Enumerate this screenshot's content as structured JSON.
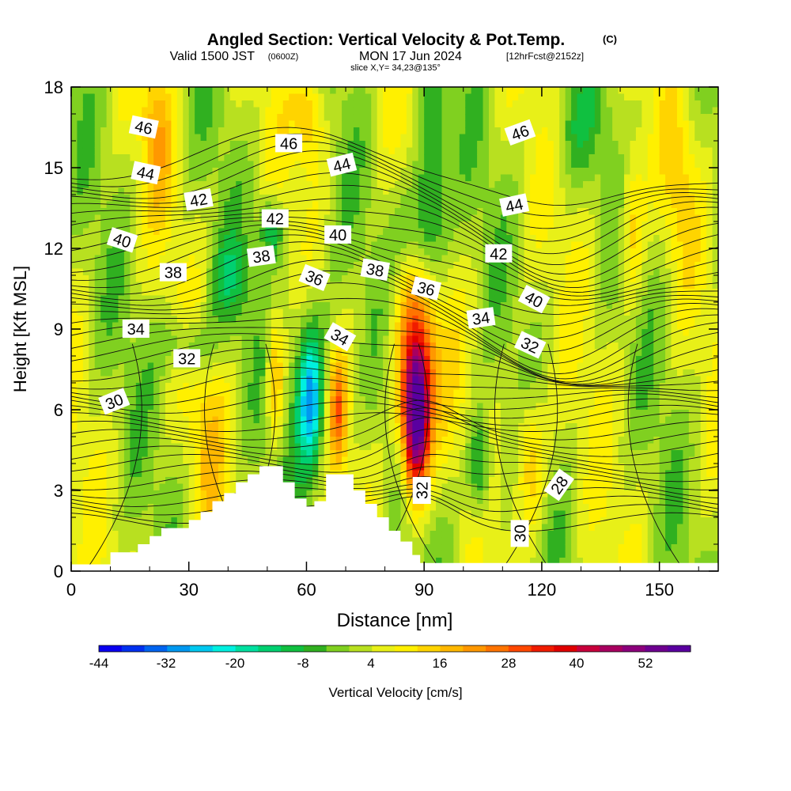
{
  "chart_data": {
    "type": "heatmap",
    "title": "Angled Section: Vertical Velocity & Pot.Temp.",
    "title_suffix": "(C)",
    "subtitle_prefix": "Valid 1500 JST",
    "subtitle_utc": "(0600Z)",
    "subtitle_date": "MON 17 Jun 2024",
    "subtitle_run": "[12hrFcst@2152z]",
    "slice_label": "slice X,Y= 34,23@135°",
    "xlabel": "Distance [nm]",
    "ylabel": "Height [Kft MSL]",
    "xlim": [
      0,
      165
    ],
    "ylim": [
      0,
      18
    ],
    "xticks": [
      0,
      30,
      60,
      90,
      120,
      150
    ],
    "yticks": [
      0,
      3,
      6,
      9,
      12,
      15,
      18
    ],
    "colorbar": {
      "label": "Vertical Velocity [cm/s]",
      "tick_labels": [
        "-44",
        "-32",
        "-20",
        "-8",
        "4",
        "16",
        "28",
        "40",
        "52"
      ],
      "colors": [
        "#0a00f0",
        "#0030f0",
        "#0064f0",
        "#0098f0",
        "#00c8f0",
        "#00f0e0",
        "#00e0a0",
        "#00d070",
        "#10c040",
        "#30b020",
        "#80d020",
        "#b8e020",
        "#e8f018",
        "#fff000",
        "#ffd400",
        "#ffb800",
        "#ff9800",
        "#ff7400",
        "#ff4800",
        "#f01c00",
        "#e00000",
        "#c8003c",
        "#a80060",
        "#8c007c",
        "#6e0090",
        "#5a00a0"
      ]
    },
    "terrain_profile": [
      [
        0,
        0.25
      ],
      [
        10,
        0.7
      ],
      [
        17,
        1.0
      ],
      [
        20,
        1.3
      ],
      [
        23,
        1.6
      ],
      [
        30,
        1.9
      ],
      [
        33,
        2.2
      ],
      [
        36,
        2.6
      ],
      [
        39,
        2.9
      ],
      [
        42,
        3.3
      ],
      [
        45,
        3.6
      ],
      [
        48,
        3.9
      ],
      [
        52,
        3.9
      ],
      [
        54,
        3.3
      ],
      [
        57,
        2.7
      ],
      [
        60,
        2.4
      ],
      [
        62,
        2.6
      ],
      [
        65,
        3.6
      ],
      [
        70,
        3.6
      ],
      [
        72,
        3.0
      ],
      [
        75,
        2.5
      ],
      [
        78,
        2.0
      ],
      [
        81,
        1.5
      ],
      [
        84,
        1.1
      ],
      [
        87,
        0.6
      ],
      [
        89,
        0.3
      ],
      [
        165,
        0.3
      ]
    ],
    "velocity_features": [
      {
        "x": 88,
        "z": 5.5,
        "peak": 56,
        "sx": 3.2,
        "sz": 2.6,
        "tilt": 0.06
      },
      {
        "x": 88,
        "z": 8.0,
        "peak": 24,
        "sx": 6.0,
        "sz": 3.5,
        "tilt": -0.1
      },
      {
        "x": 61,
        "z": 6.3,
        "peak": -26,
        "sx": 3.0,
        "sz": 2.4,
        "tilt": 0
      },
      {
        "x": 61,
        "z": 7.5,
        "peak": -10,
        "sx": 6.0,
        "sz": 4.0,
        "tilt": 0
      },
      {
        "x": 52,
        "z": 7.3,
        "peak": 18,
        "sx": 2.2,
        "sz": 2.4,
        "tilt": 0
      },
      {
        "x": 68,
        "z": 6.0,
        "peak": 20,
        "sx": 2.2,
        "sz": 2.0,
        "tilt": 0
      },
      {
        "x": 104,
        "z": 3.8,
        "peak": -18,
        "sx": 3.0,
        "sz": 2.0,
        "tilt": 0
      },
      {
        "x": 117,
        "z": 4.2,
        "peak": 16,
        "sx": 4.0,
        "sz": 2.6,
        "tilt": 0
      },
      {
        "x": 35,
        "z": 4.5,
        "peak": 8,
        "sx": 5.0,
        "sz": 3.5,
        "tilt": 0
      },
      {
        "x": 22,
        "z": 16.5,
        "peak": 12,
        "sx": 4.0,
        "sz": 3.0,
        "tilt": 0
      },
      {
        "x": 61,
        "z": 17.0,
        "peak": 14,
        "sx": 4.0,
        "sz": 2.0,
        "tilt": 0
      },
      {
        "x": 92,
        "z": 14.5,
        "peak": -16,
        "sx": 4.0,
        "sz": 4.0,
        "tilt": 0
      },
      {
        "x": 88,
        "z": 12.5,
        "peak": -12,
        "sx": 5.0,
        "sz": 2.0,
        "tilt": 0
      },
      {
        "x": 51,
        "z": 12.7,
        "peak": -16,
        "sx": 3.0,
        "sz": 1.2,
        "tilt": 0
      },
      {
        "x": 40,
        "z": 10.8,
        "peak": -10,
        "sx": 5.0,
        "sz": 1.5,
        "tilt": 0
      },
      {
        "x": 30,
        "z": 8.4,
        "peak": -12,
        "sx": 7.0,
        "sz": 1.2,
        "tilt": 0
      },
      {
        "x": 143,
        "z": 13.0,
        "peak": 14,
        "sx": 3.0,
        "sz": 3.0,
        "tilt": 0
      },
      {
        "x": 155,
        "z": 14.5,
        "peak": 8,
        "sx": 4.0,
        "sz": 3.0,
        "tilt": 0
      },
      {
        "x": 128,
        "z": 16.5,
        "peak": -8,
        "sx": 6.0,
        "sz": 2.0,
        "tilt": 0
      }
    ],
    "theta_contour_labels": [
      {
        "text": "46",
        "x": 18.5,
        "z": 16.5,
        "angle": 12
      },
      {
        "text": "46",
        "x": 55.5,
        "z": 15.9,
        "angle": 0
      },
      {
        "text": "46",
        "x": 114.5,
        "z": 16.3,
        "angle": -20
      },
      {
        "text": "44",
        "x": 19.0,
        "z": 14.8,
        "angle": 12
      },
      {
        "text": "44",
        "x": 69.0,
        "z": 15.1,
        "angle": -14
      },
      {
        "text": "44",
        "x": 113.0,
        "z": 13.6,
        "angle": -12
      },
      {
        "text": "42",
        "x": 32.5,
        "z": 13.8,
        "angle": -10
      },
      {
        "text": "42",
        "x": 52.0,
        "z": 13.1,
        "angle": 0
      },
      {
        "text": "42",
        "x": 109.0,
        "z": 11.8,
        "angle": 0
      },
      {
        "text": "40",
        "x": 13.0,
        "z": 12.3,
        "angle": 18
      },
      {
        "text": "40",
        "x": 68.0,
        "z": 12.5,
        "angle": 0
      },
      {
        "text": "40",
        "x": 118.0,
        "z": 10.1,
        "angle": 28
      },
      {
        "text": "38",
        "x": 26.0,
        "z": 11.1,
        "angle": 0
      },
      {
        "text": "38",
        "x": 48.5,
        "z": 11.7,
        "angle": -8
      },
      {
        "text": "38",
        "x": 77.5,
        "z": 11.2,
        "angle": 10
      },
      {
        "text": "36",
        "x": 62.0,
        "z": 10.9,
        "angle": 22
      },
      {
        "text": "36",
        "x": 90.5,
        "z": 10.5,
        "angle": 14
      },
      {
        "text": "34",
        "x": 16.5,
        "z": 9.0,
        "angle": 0
      },
      {
        "text": "34",
        "x": 68.5,
        "z": 8.7,
        "angle": 30
      },
      {
        "text": "34",
        "x": 104.5,
        "z": 9.4,
        "angle": -8
      },
      {
        "text": "32",
        "x": 29.5,
        "z": 7.9,
        "angle": 0
      },
      {
        "text": "32",
        "x": 117.0,
        "z": 8.4,
        "angle": 25
      },
      {
        "text": "32",
        "x": 89.5,
        "z": 3.0,
        "angle": -90
      },
      {
        "text": "30",
        "x": 11.0,
        "z": 6.3,
        "angle": -22
      },
      {
        "text": "30",
        "x": 114.5,
        "z": 1.4,
        "angle": -90
      },
      {
        "text": "28",
        "x": 124.5,
        "z": 3.2,
        "angle": -55
      }
    ]
  }
}
